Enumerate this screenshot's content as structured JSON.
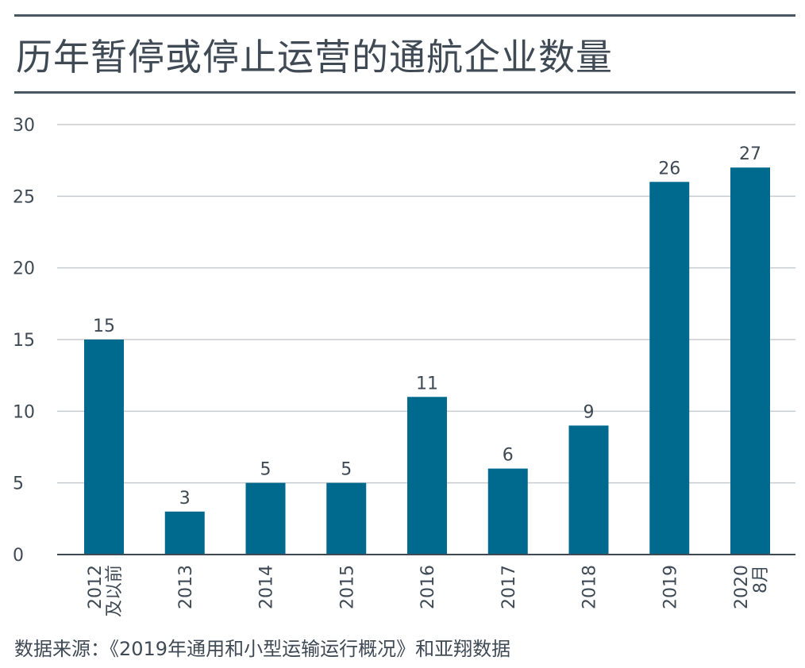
{
  "chart_data": {
    "type": "bar",
    "title": "历年暂停或停止运营的通航企业数量",
    "categories": [
      [
        "2012",
        "及以前"
      ],
      [
        "2013"
      ],
      [
        "2014"
      ],
      [
        "2015"
      ],
      [
        "2016"
      ],
      [
        "2017"
      ],
      [
        "2018"
      ],
      [
        "2019"
      ],
      [
        "2020",
        "8月"
      ]
    ],
    "values": [
      15,
      3,
      5,
      5,
      11,
      6,
      9,
      26,
      27
    ],
    "xlabel": "",
    "ylabel": "",
    "ylim": [
      0,
      30
    ],
    "yticks": [
      0,
      5,
      10,
      15,
      20,
      25,
      30
    ],
    "grid": true,
    "source": "数据来源：《2019年通用和小型运输运行概况》和亚翔数据",
    "colors": {
      "bar": "#006a8e",
      "grid": "#c8ccd0",
      "axis": "#3f4a55",
      "text": "#3f4a55"
    }
  }
}
